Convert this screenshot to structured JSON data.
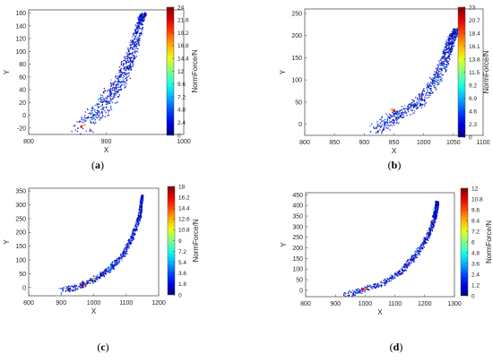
{
  "chart_data": [
    {
      "type": "scatter",
      "panel": "(a)",
      "xlabel": "X",
      "ylabel": "Y",
      "xlim": [
        800,
        1000
      ],
      "ylim": [
        -30,
        165
      ],
      "xticks": [
        "800",
        "900",
        "1000"
      ],
      "yticks": [
        "-20",
        "0",
        "20",
        "40",
        "60",
        "80",
        "100",
        "120",
        "140",
        "160"
      ],
      "colorbar": {
        "label": "NormForce/N",
        "min": 0,
        "max": 24,
        "ticks": [
          "0",
          "2.4",
          "4.8",
          "7.2",
          "9.6",
          "12",
          "14.4",
          "16.8",
          "19.2",
          "21.6",
          "24"
        ]
      },
      "trajectory": [
        [
          865,
          -20
        ],
        [
          880,
          -5
        ],
        [
          895,
          15
        ],
        [
          910,
          40
        ],
        [
          922,
          65
        ],
        [
          930,
          90
        ],
        [
          938,
          120
        ],
        [
          944,
          150
        ],
        [
          948,
          160
        ]
      ],
      "width_start": 14,
      "width_end": 3,
      "force_spots": [
        [
          868,
          -18,
          22
        ],
        [
          872,
          -15,
          17
        ],
        [
          880,
          -8,
          12
        ],
        [
          890,
          25,
          10
        ],
        [
          915,
          50,
          8
        ],
        [
          886,
          0,
          7
        ]
      ],
      "n_points": 780
    },
    {
      "type": "scatter",
      "panel": "(b)",
      "xlabel": "X",
      "ylabel": "Y",
      "xlim": [
        800,
        1100
      ],
      "ylim": [
        -25,
        260
      ],
      "xticks": [
        "800",
        "850",
        "900",
        "950",
        "1000",
        "1050",
        "1100"
      ],
      "yticks": [
        "0",
        "50",
        "100",
        "150",
        "200",
        "250"
      ],
      "colorbar": {
        "label": "NormForce/N",
        "min": 0,
        "max": 23,
        "ticks": [
          "0",
          "2.3",
          "4.6",
          "6.9",
          "9.2",
          "11.5",
          "13.8",
          "16.1",
          "18.4",
          "20.7",
          "23"
        ]
      },
      "trajectory": [
        [
          915,
          -15
        ],
        [
          935,
          5
        ],
        [
          960,
          25
        ],
        [
          990,
          50
        ],
        [
          1015,
          90
        ],
        [
          1030,
          130
        ],
        [
          1040,
          170
        ],
        [
          1048,
          200
        ],
        [
          1055,
          215
        ]
      ],
      "width_start": 14,
      "width_end": 5,
      "force_spots": [
        [
          950,
          30,
          20
        ],
        [
          947,
          33,
          17
        ],
        [
          958,
          20,
          10
        ],
        [
          1020,
          100,
          8
        ],
        [
          935,
          5,
          6
        ]
      ],
      "n_points": 800
    },
    {
      "type": "scatter",
      "panel": "(c)",
      "xlabel": "X",
      "ylabel": "Y",
      "xlim": [
        800,
        1200
      ],
      "ylim": [
        -30,
        360
      ],
      "xticks": [
        "800",
        "900",
        "1000",
        "1100",
        "1200"
      ],
      "yticks": [
        "0",
        "50",
        "100",
        "150",
        "200",
        "250",
        "300",
        "350"
      ],
      "colorbar": {
        "label": "NormForce/N",
        "min": 0,
        "max": 18,
        "ticks": [
          "0",
          "1.8",
          "3.6",
          "5.4",
          "7.2",
          "9",
          "10.8",
          "12.6",
          "14.4",
          "16.2",
          "18"
        ]
      },
      "trajectory": [
        [
          900,
          -10
        ],
        [
          950,
          5
        ],
        [
          1000,
          30
        ],
        [
          1050,
          70
        ],
        [
          1090,
          120
        ],
        [
          1120,
          190
        ],
        [
          1140,
          260
        ],
        [
          1145,
          310
        ],
        [
          1148,
          335
        ]
      ],
      "width_start": 12,
      "width_end": 3,
      "force_spots": [
        [
          960,
          10,
          17
        ],
        [
          975,
          12,
          15
        ],
        [
          990,
          20,
          9
        ],
        [
          1000,
          30,
          12
        ],
        [
          1050,
          70,
          7
        ]
      ],
      "n_points": 760
    },
    {
      "type": "scatter",
      "panel": "(d)",
      "xlabel": "X",
      "ylabel": "Y",
      "xlim": [
        800,
        1300
      ],
      "ylim": [
        -30,
        460
      ],
      "xticks": [
        "800",
        "900",
        "1000",
        "1100",
        "1200",
        "1300"
      ],
      "yticks": [
        "0",
        "50",
        "100",
        "150",
        "200",
        "250",
        "300",
        "350",
        "400",
        "450"
      ],
      "colorbar": {
        "label": "NormForce/N",
        "min": 0,
        "max": 12,
        "ticks": [
          "0",
          "1.2",
          "2.4",
          "3.6",
          "4.8",
          "6",
          "7.2",
          "8.4",
          "9.6",
          "10.8",
          "12"
        ]
      },
      "trajectory": [
        [
          930,
          -20
        ],
        [
          980,
          0
        ],
        [
          1050,
          30
        ],
        [
          1120,
          90
        ],
        [
          1170,
          170
        ],
        [
          1210,
          260
        ],
        [
          1230,
          340
        ],
        [
          1238,
          390
        ],
        [
          1240,
          420
        ]
      ],
      "width_start": 14,
      "width_end": 5,
      "force_spots": [
        [
          990,
          5,
          11
        ],
        [
          1000,
          8,
          9
        ],
        [
          1210,
          280,
          7
        ],
        [
          1230,
          380,
          6
        ]
      ],
      "n_points": 820
    }
  ]
}
